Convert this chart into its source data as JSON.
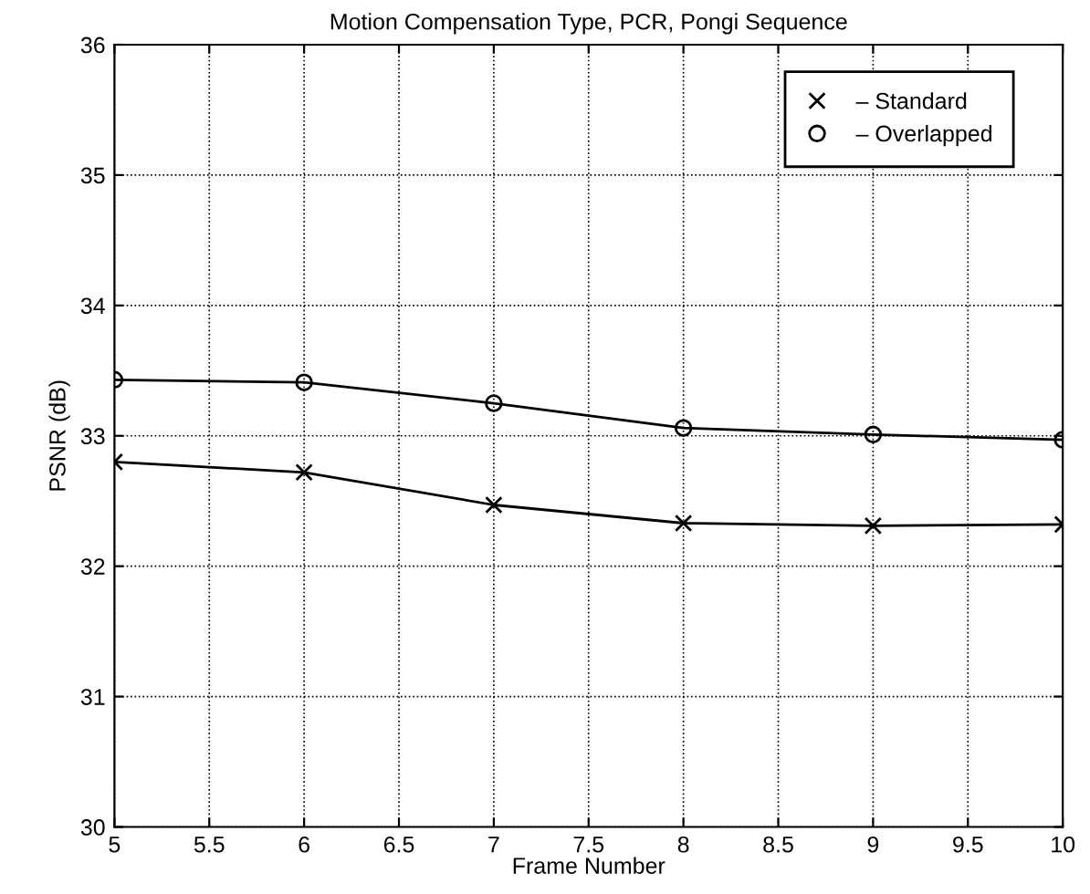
{
  "chart_data": {
    "type": "line",
    "title": "Motion Compensation Type, PCR, Pongi Sequence",
    "xlabel": "Frame Number",
    "ylabel": "PSNR (dB)",
    "x": [
      5,
      6,
      7,
      8,
      9,
      10
    ],
    "series": [
      {
        "name": "– Standard",
        "color": "#000000",
        "marker": "cross",
        "values": [
          32.8,
          32.72,
          32.47,
          32.33,
          32.31,
          32.32
        ]
      },
      {
        "name": "– Overlapped",
        "color": "#000000",
        "marker": "circle",
        "values": [
          33.43,
          33.41,
          33.25,
          33.06,
          33.01,
          32.97
        ]
      }
    ],
    "xlim": [
      5,
      10
    ],
    "xticks": [
      5,
      5.5,
      6,
      6.5,
      7,
      7.5,
      8,
      8.5,
      9,
      9.5,
      10
    ],
    "ylim": [
      30,
      36
    ],
    "yticks": [
      30,
      31,
      32,
      33,
      34,
      35,
      36
    ],
    "grid": true,
    "legend": "top right",
    "line_style": "solid"
  }
}
